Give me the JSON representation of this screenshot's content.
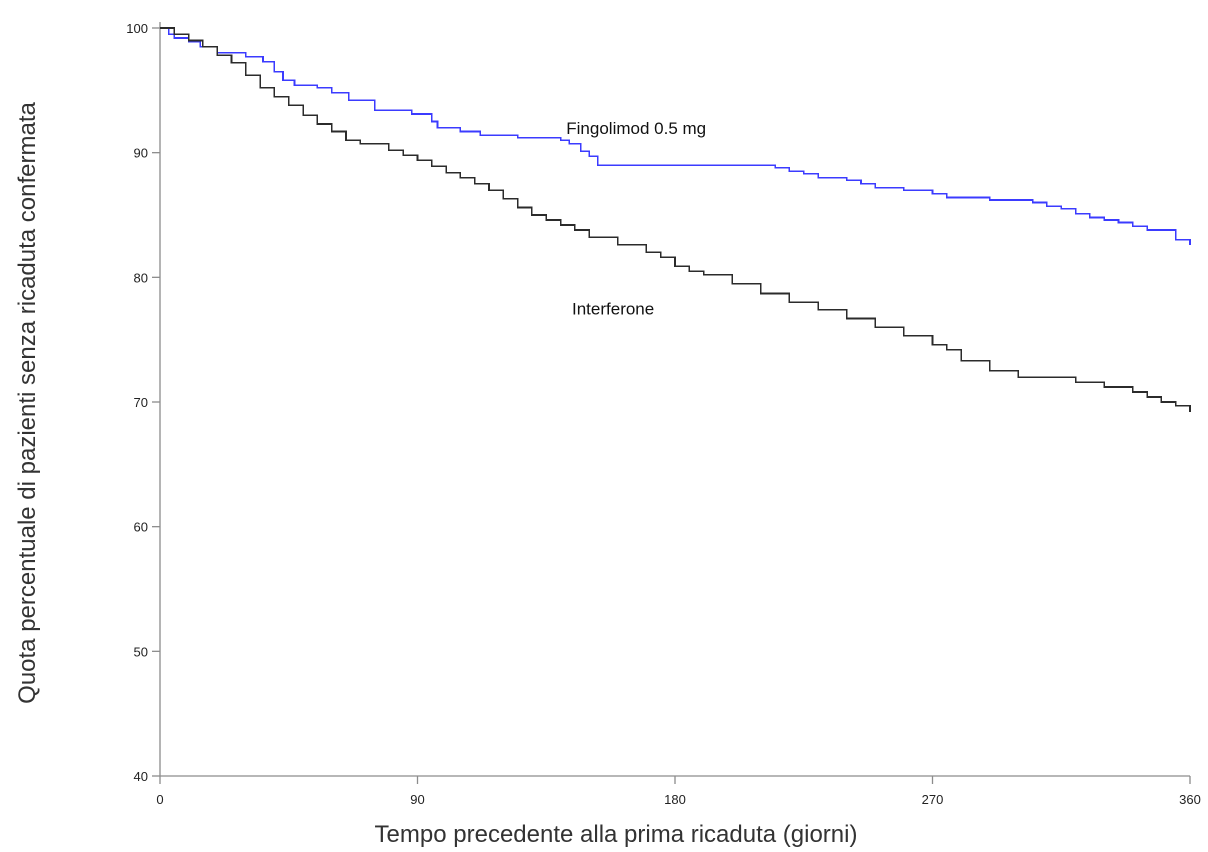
{
  "chart_data": {
    "type": "line",
    "title": "",
    "xlabel": "Tempo precedente alla prima ricaduta (giorni)",
    "ylabel": "Quota percentuale di pazienti senza ricaduta confermata",
    "xlim": [
      0,
      360
    ],
    "ylim": [
      40,
      100
    ],
    "xticks": [
      0,
      90,
      180,
      270,
      360
    ],
    "yticks": [
      40,
      50,
      60,
      70,
      80,
      90,
      100
    ],
    "grid": false,
    "legend": "inline labels",
    "series": [
      {
        "name": "Fingolimod 0.5 mg",
        "color": "#3b3bff",
        "step": true,
        "label_at": [
          142,
          91.5
        ],
        "x": [
          0,
          3,
          5,
          10,
          14,
          20,
          30,
          36,
          40,
          43,
          47,
          50,
          55,
          60,
          66,
          75,
          80,
          88,
          95,
          97,
          105,
          112,
          125,
          140,
          143,
          147,
          150,
          153,
          160,
          200,
          215,
          220,
          225,
          230,
          240,
          245,
          250,
          260,
          270,
          275,
          290,
          305,
          310,
          315,
          320,
          325,
          330,
          335,
          340,
          345,
          355,
          360
        ],
        "y": [
          100,
          99.5,
          99.2,
          98.9,
          98.5,
          98.0,
          97.7,
          97.3,
          96.5,
          95.8,
          95.4,
          95.4,
          95.2,
          94.8,
          94.2,
          93.4,
          93.4,
          93.1,
          92.5,
          92.0,
          91.7,
          91.4,
          91.2,
          91.0,
          90.7,
          90.1,
          89.7,
          89.0,
          89.0,
          89.0,
          88.8,
          88.5,
          88.3,
          88.0,
          87.8,
          87.5,
          87.2,
          87.0,
          86.7,
          86.4,
          86.2,
          86.0,
          85.7,
          85.5,
          85.1,
          84.8,
          84.6,
          84.4,
          84.1,
          83.8,
          83.0,
          82.6
        ]
      },
      {
        "name": "Interferone",
        "color": "#2b2b2b",
        "step": true,
        "label_at": [
          144,
          77.0
        ],
        "x": [
          0,
          5,
          10,
          15,
          20,
          25,
          30,
          35,
          40,
          45,
          50,
          55,
          60,
          65,
          70,
          80,
          85,
          90,
          95,
          100,
          105,
          110,
          115,
          120,
          125,
          130,
          135,
          140,
          145,
          150,
          160,
          170,
          175,
          180,
          185,
          190,
          200,
          210,
          220,
          230,
          240,
          250,
          260,
          270,
          275,
          280,
          290,
          300,
          320,
          330,
          340,
          345,
          350,
          355,
          360
        ],
        "y": [
          100,
          99.5,
          99.0,
          98.5,
          97.8,
          97.2,
          96.2,
          95.2,
          94.5,
          93.8,
          93.0,
          92.3,
          91.7,
          91.0,
          90.7,
          90.2,
          89.8,
          89.4,
          88.9,
          88.4,
          88.0,
          87.5,
          87.0,
          86.3,
          85.6,
          85.0,
          84.6,
          84.2,
          83.8,
          83.2,
          82.6,
          82.0,
          81.6,
          80.9,
          80.5,
          80.2,
          79.5,
          78.7,
          78.0,
          77.4,
          76.7,
          76.0,
          75.3,
          74.6,
          74.2,
          73.3,
          72.5,
          72.0,
          71.6,
          71.2,
          70.8,
          70.4,
          70.0,
          69.7,
          69.2
        ]
      }
    ]
  }
}
